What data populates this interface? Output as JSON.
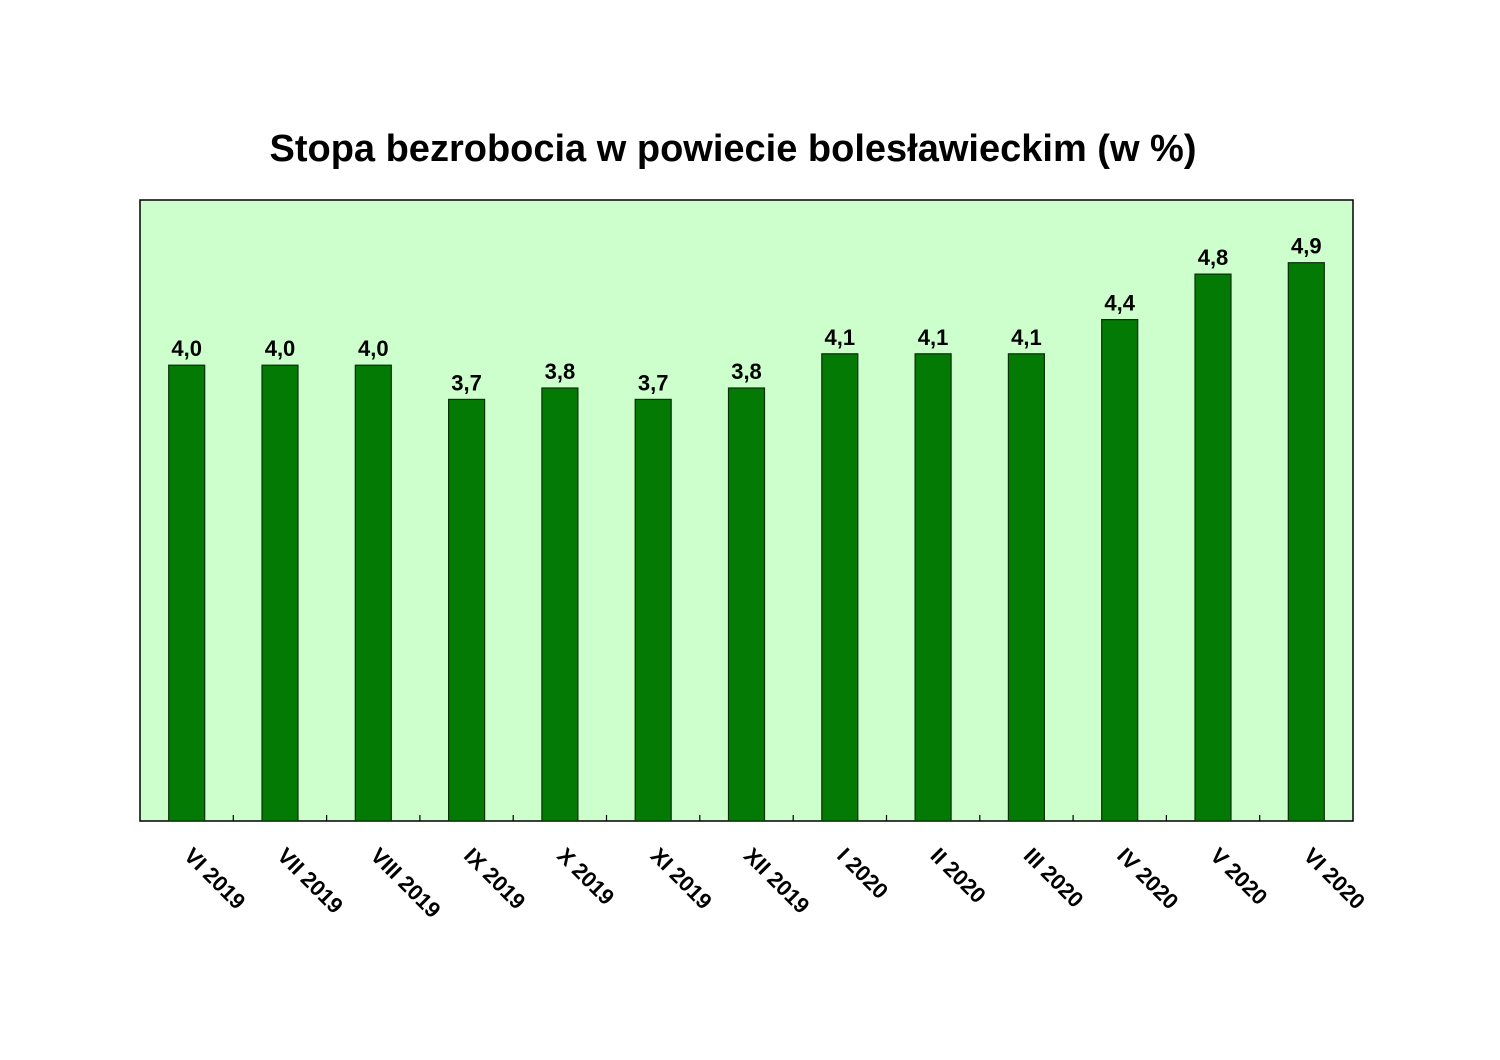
{
  "chart_data": {
    "type": "bar",
    "title": "Stopa bezrobocia w powiecie bolesławieckim (w %)",
    "categories": [
      "VI 2019",
      "VII 2019",
      "VIII 2019",
      "IX 2019",
      "X 2019",
      "XI 2019",
      "XII 2019",
      "I 2020",
      "II 2020",
      "III 2020",
      "IV 2020",
      "V 2020",
      "VI 2020"
    ],
    "values": [
      4.0,
      4.0,
      4.0,
      3.7,
      3.8,
      3.7,
      3.8,
      4.1,
      4.1,
      4.1,
      4.4,
      4.8,
      4.9
    ],
    "value_labels": [
      "4,0",
      "4,0",
      "4,0",
      "3,7",
      "3,8",
      "3,7",
      "3,8",
      "4,1",
      "4,1",
      "4,1",
      "4,4",
      "4,8",
      "4,9"
    ],
    "ylim": [
      0,
      5.45
    ],
    "grid": false,
    "legend": "none",
    "colors": {
      "bar": "#037a03",
      "plot_background": "#ccffcc"
    }
  }
}
